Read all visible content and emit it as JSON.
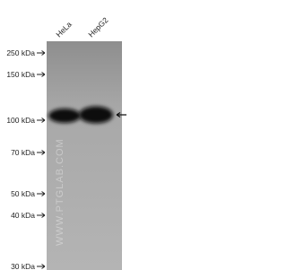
{
  "lanes": [
    "HeLa",
    "HepG2"
  ],
  "markers": [
    "250 kDa",
    "150 kDa",
    "100 kDa",
    "70 kDa",
    "50 kDa",
    "40 kDa",
    "30 kDa"
  ],
  "watermark": "WWW.PTGLAB.COM"
}
